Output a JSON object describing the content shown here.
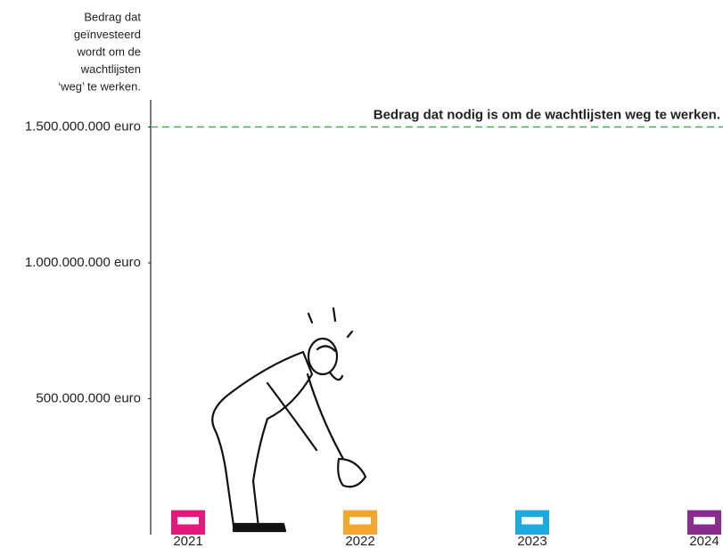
{
  "chart_data": {
    "type": "bar",
    "y_label": [
      "Bedrag dat",
      "geïnvesteerd",
      "wordt om de",
      "wachtlijsten",
      "‘weg’ te werken."
    ],
    "categories": [
      "2021",
      "2022",
      "2023",
      "2024"
    ],
    "series": [
      {
        "values": [
          90000000,
          90000000,
          90000000,
          90000000
        ],
        "colors": [
          "#e5197b",
          "#f4a62a",
          "#1aa9e1",
          "#8a2b8f"
        ]
      }
    ],
    "ylim": [
      0,
      1600000000
    ],
    "yticks": [
      {
        "value": 500000000,
        "label": "500.000.000 euro"
      },
      {
        "value": 1000000000,
        "label": "1.000.000.000 euro"
      },
      {
        "value": 1500000000,
        "label": "1.500.000.000 euro"
      }
    ],
    "reference_line": {
      "value": 1500000000,
      "label": "Bedrag dat nodig is om de wachtlijsten weg te werken.",
      "color": "#3bb54a"
    },
    "grid": false
  }
}
